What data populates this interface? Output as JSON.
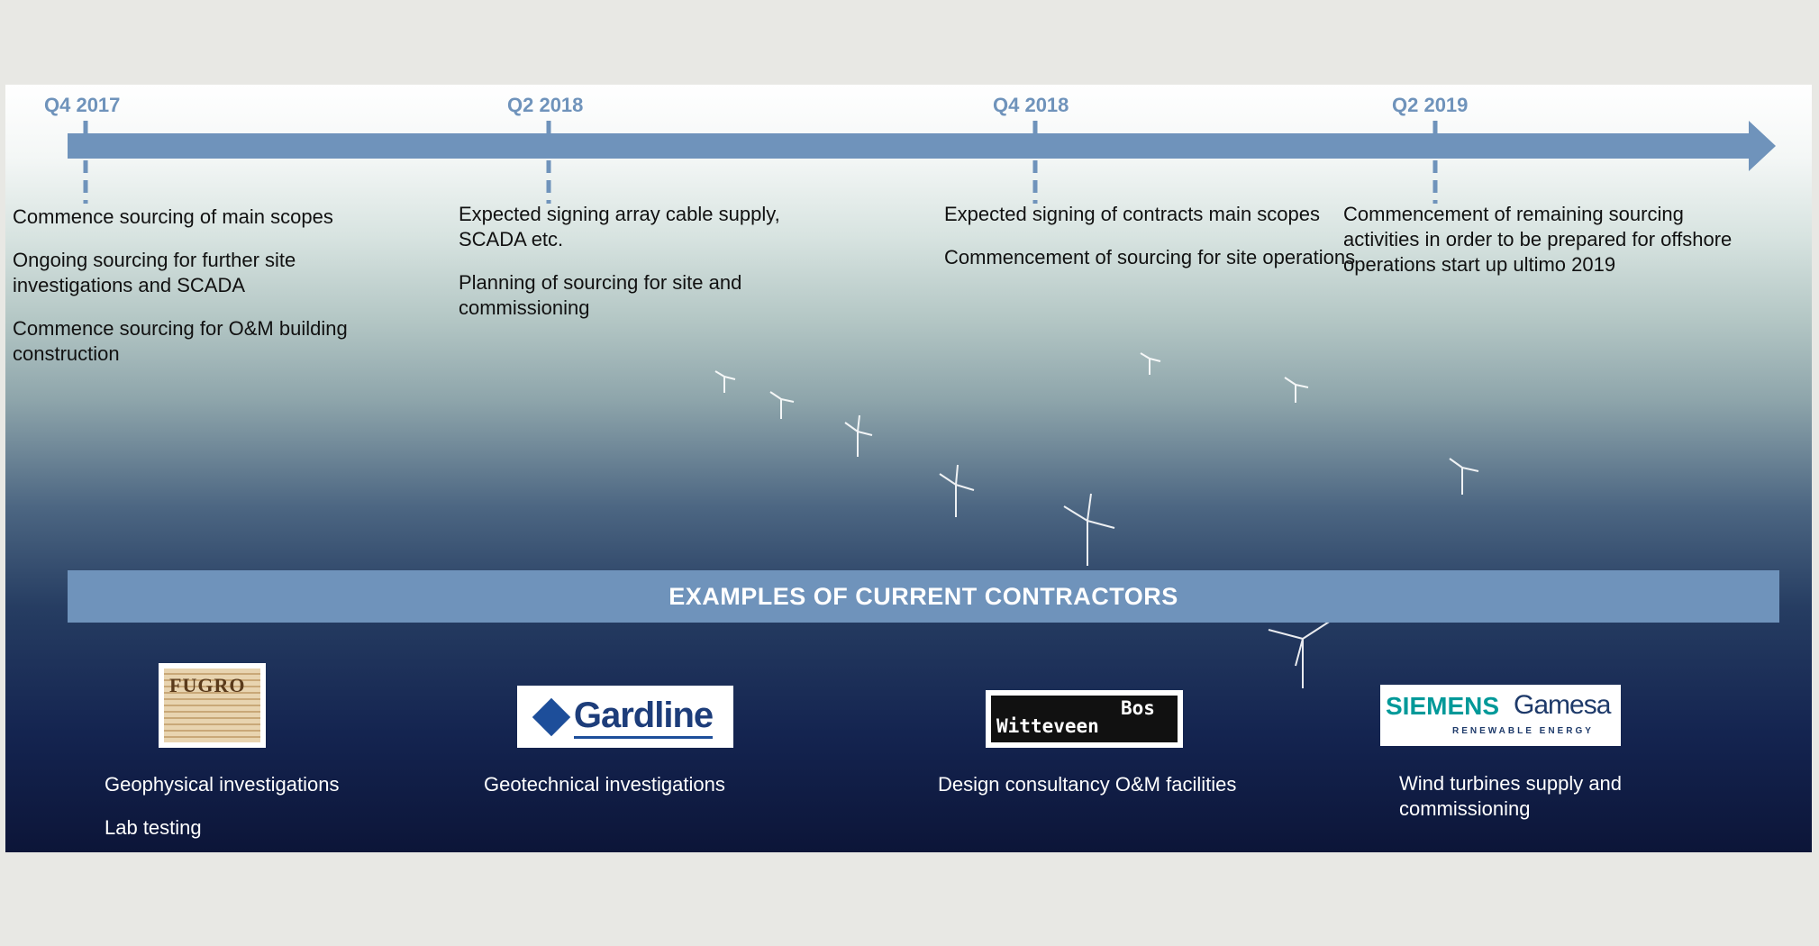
{
  "timeline": {
    "milestones": [
      {
        "date": "Q4 2017",
        "items": [
          "Commence sourcing of main scopes",
          "Ongoing sourcing for further site investigations and SCADA",
          "Commence sourcing for O&M building construction"
        ]
      },
      {
        "date": "Q2 2018",
        "items": [
          "Expected signing array cable supply, SCADA etc.",
          "Planning of sourcing for site and commissioning"
        ]
      },
      {
        "date": "Q4 2018",
        "items": [
          "Expected signing of contracts main scopes",
          "Commencement of sourcing for site operations"
        ]
      },
      {
        "date": "Q2 2019",
        "items": [
          "Commencement of remaining sourcing activities in order to be prepared for offshore operations start up ultimo 2019"
        ]
      }
    ]
  },
  "contractors": {
    "title": "EXAMPLES OF CURRENT CONTRACTORS",
    "items": [
      {
        "logo": [
          "FUGRO"
        ],
        "descriptions": [
          "Geophysical investigations",
          "Lab testing"
        ]
      },
      {
        "logo": [
          "Gardline"
        ],
        "descriptions": [
          "Geotechnical investigations"
        ]
      },
      {
        "logo": [
          "Witteveen",
          "Bos"
        ],
        "descriptions": [
          "Design consultancy O&M facilities"
        ]
      },
      {
        "logo": [
          "SIEMENS",
          "Gamesa",
          "RENEWABLE ENERGY"
        ],
        "descriptions": [
          "Wind turbines supply and commissioning"
        ]
      }
    ]
  }
}
